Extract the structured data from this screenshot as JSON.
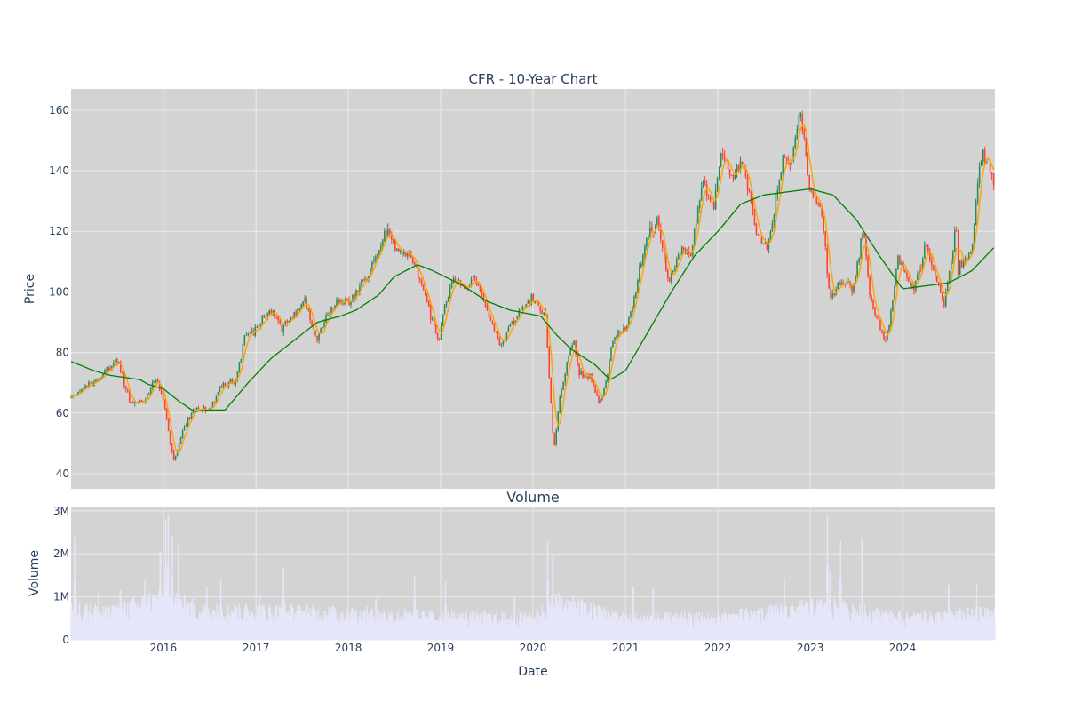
{
  "chart_data": [
    {
      "type": "candlestick",
      "title": "CFR - 10-Year Chart",
      "xlabel": "",
      "ylabel": "Price",
      "ylim": [
        35,
        167
      ],
      "yticks": [
        40,
        60,
        80,
        100,
        120,
        140,
        160
      ],
      "grid": true,
      "background": "#d3d3d3",
      "colors": {
        "increasing": "#2e8b57",
        "decreasing": "#ff4136",
        "ma_short": "#ffa500",
        "ma_long": "#008000"
      },
      "price_anchors": [
        [
          "2015-01-01",
          65
        ],
        [
          "2015-02-01",
          67
        ],
        [
          "2015-03-15",
          69
        ],
        [
          "2015-05-01",
          72
        ],
        [
          "2015-07-01",
          78
        ],
        [
          "2015-08-25",
          63
        ],
        [
          "2015-10-15",
          64
        ],
        [
          "2015-11-30",
          71
        ],
        [
          "2016-01-01",
          64
        ],
        [
          "2016-02-11",
          44
        ],
        [
          "2016-03-20",
          55
        ],
        [
          "2016-05-01",
          62
        ],
        [
          "2016-07-01",
          61
        ],
        [
          "2016-08-15",
          69
        ],
        [
          "2016-10-15",
          71
        ],
        [
          "2016-11-15",
          85
        ],
        [
          "2016-12-31",
          88
        ],
        [
          "2017-03-01",
          94
        ],
        [
          "2017-04-15",
          88
        ],
        [
          "2017-06-01",
          93
        ],
        [
          "2017-07-15",
          97
        ],
        [
          "2017-08-31",
          84
        ],
        [
          "2017-10-15",
          94
        ],
        [
          "2017-11-30",
          97
        ],
        [
          "2018-01-01",
          96
        ],
        [
          "2018-02-10",
          101
        ],
        [
          "2018-04-01",
          108
        ],
        [
          "2018-06-08",
          121
        ],
        [
          "2018-07-01",
          114
        ],
        [
          "2018-08-15",
          113
        ],
        [
          "2018-10-01",
          107
        ],
        [
          "2018-11-01",
          98
        ],
        [
          "2018-12-24",
          83
        ],
        [
          "2019-01-15",
          96
        ],
        [
          "2019-03-01",
          104
        ],
        [
          "2019-04-15",
          101
        ],
        [
          "2019-05-15",
          104
        ],
        [
          "2019-07-01",
          95
        ],
        [
          "2019-08-25",
          82
        ],
        [
          "2019-10-01",
          88
        ],
        [
          "2019-11-15",
          95
        ],
        [
          "2019-12-31",
          98
        ],
        [
          "2020-02-20",
          92
        ],
        [
          "2020-03-23",
          47
        ],
        [
          "2020-04-15",
          65
        ],
        [
          "2020-06-08",
          85
        ],
        [
          "2020-07-01",
          73
        ],
        [
          "2020-08-15",
          72
        ],
        [
          "2020-09-20",
          63
        ],
        [
          "2020-10-15",
          70
        ],
        [
          "2020-11-15",
          85
        ],
        [
          "2020-12-31",
          88
        ],
        [
          "2021-02-01",
          97
        ],
        [
          "2021-03-15",
          115
        ],
        [
          "2021-05-07",
          124
        ],
        [
          "2021-06-20",
          103
        ],
        [
          "2021-08-01",
          114
        ],
        [
          "2021-09-15",
          112
        ],
        [
          "2021-11-01",
          138
        ],
        [
          "2021-12-15",
          127
        ],
        [
          "2022-01-13",
          147
        ],
        [
          "2022-03-01",
          138
        ],
        [
          "2022-04-10",
          143
        ],
        [
          "2022-06-01",
          120
        ],
        [
          "2022-07-15",
          114
        ],
        [
          "2022-09-15",
          145
        ],
        [
          "2022-10-15",
          141
        ],
        [
          "2022-11-25",
          160
        ],
        [
          "2022-12-31",
          133
        ],
        [
          "2023-02-15",
          128
        ],
        [
          "2023-03-20",
          97
        ],
        [
          "2023-05-04",
          104
        ],
        [
          "2023-06-15",
          101
        ],
        [
          "2023-07-31",
          120
        ],
        [
          "2023-08-25",
          98
        ],
        [
          "2023-10-27",
          83
        ],
        [
          "2023-12-15",
          111
        ],
        [
          "2024-02-15",
          101
        ],
        [
          "2024-04-01",
          115
        ],
        [
          "2024-06-15",
          96
        ],
        [
          "2024-07-31",
          123
        ],
        [
          "2024-08-07",
          107
        ],
        [
          "2024-09-30",
          114
        ],
        [
          "2024-11-10",
          147
        ],
        [
          "2024-12-31",
          136
        ]
      ],
      "ma_long_anchors": [
        [
          "2015-01-01",
          77
        ],
        [
          "2015-04-01",
          74
        ],
        [
          "2015-06-01",
          72.5
        ],
        [
          "2015-10-01",
          71
        ],
        [
          "2015-11-01",
          69.5
        ],
        [
          "2016-01-01",
          68
        ],
        [
          "2016-03-01",
          64
        ],
        [
          "2016-05-01",
          60.5
        ],
        [
          "2016-07-01",
          61
        ],
        [
          "2016-09-01",
          61
        ],
        [
          "2016-10-01",
          64
        ],
        [
          "2016-12-01",
          70
        ],
        [
          "2017-03-01",
          78
        ],
        [
          "2017-07-01",
          86
        ],
        [
          "2017-09-01",
          90
        ],
        [
          "2017-12-01",
          92
        ],
        [
          "2018-02-01",
          94
        ],
        [
          "2018-05-01",
          99
        ],
        [
          "2018-07-01",
          105
        ],
        [
          "2018-10-01",
          109
        ],
        [
          "2018-12-01",
          107
        ],
        [
          "2019-04-01",
          102
        ],
        [
          "2019-07-01",
          97
        ],
        [
          "2019-10-01",
          94
        ],
        [
          "2020-02-01",
          92
        ],
        [
          "2020-04-01",
          86
        ],
        [
          "2020-06-01",
          81
        ],
        [
          "2020-09-01",
          76
        ],
        [
          "2020-11-01",
          71
        ],
        [
          "2021-01-01",
          74
        ],
        [
          "2021-04-01",
          87
        ],
        [
          "2021-07-01",
          100
        ],
        [
          "2021-10-01",
          112
        ],
        [
          "2022-01-01",
          120
        ],
        [
          "2022-04-01",
          129
        ],
        [
          "2022-07-01",
          132
        ],
        [
          "2022-10-01",
          133
        ],
        [
          "2023-01-01",
          134
        ],
        [
          "2023-04-01",
          132
        ],
        [
          "2023-07-01",
          124
        ],
        [
          "2023-10-01",
          112
        ],
        [
          "2024-01-01",
          101
        ],
        [
          "2024-04-01",
          102
        ],
        [
          "2024-07-01",
          103
        ],
        [
          "2024-10-01",
          107
        ],
        [
          "2024-12-31",
          115
        ]
      ]
    },
    {
      "type": "bar",
      "title": "Volume",
      "xlabel": "Date",
      "ylabel": "Volume",
      "ylim": [
        0,
        3100000
      ],
      "yticks": [
        0,
        1000000,
        2000000,
        3000000
      ],
      "ytick_labels": [
        "0",
        "1M",
        "2M",
        "3M"
      ],
      "xticks": [
        "2016",
        "2017",
        "2018",
        "2019",
        "2020",
        "2021",
        "2022",
        "2023",
        "2024"
      ],
      "x_range": [
        "2015-01-01",
        "2024-12-31"
      ],
      "bar_color": "#e6e6fa",
      "baseline_anchors": [
        [
          "2015-01-01",
          700000
        ],
        [
          "2015-06-01",
          550000
        ],
        [
          "2016-01-01",
          900000
        ],
        [
          "2016-06-01",
          600000
        ],
        [
          "2017-01-01",
          600000
        ],
        [
          "2018-01-01",
          550000
        ],
        [
          "2019-01-01",
          480000
        ],
        [
          "2020-01-01",
          450000
        ],
        [
          "2020-04-01",
          800000
        ],
        [
          "2021-01-01",
          450000
        ],
        [
          "2022-01-01",
          450000
        ],
        [
          "2023-03-01",
          700000
        ],
        [
          "2024-01-01",
          450000
        ],
        [
          "2024-12-31",
          550000
        ]
      ],
      "spikes": [
        [
          "2015-01-15",
          2400000
        ],
        [
          "2015-04-20",
          1400000
        ],
        [
          "2015-07-15",
          1450000
        ],
        [
          "2015-10-20",
          1400000
        ],
        [
          "2015-12-20",
          2550000
        ],
        [
          "2016-01-10",
          2800000
        ],
        [
          "2016-01-20",
          2900000
        ],
        [
          "2016-02-05",
          2400000
        ],
        [
          "2016-03-01",
          2750000
        ],
        [
          "2016-06-20",
          1250000
        ],
        [
          "2016-08-15",
          1400000
        ],
        [
          "2017-01-15",
          1300000
        ],
        [
          "2017-04-20",
          1700000
        ],
        [
          "2018-04-20",
          1200000
        ],
        [
          "2018-09-20",
          1500000
        ],
        [
          "2019-01-20",
          1350000
        ],
        [
          "2019-10-20",
          1250000
        ],
        [
          "2020-02-28",
          2300000
        ],
        [
          "2020-03-20",
          2450000
        ],
        [
          "2021-02-01",
          1550000
        ],
        [
          "2021-04-20",
          1500000
        ],
        [
          "2022-09-20",
          1800000
        ],
        [
          "2023-03-10",
          2900000
        ],
        [
          "2023-03-20",
          1600000
        ],
        [
          "2023-05-01",
          2300000
        ],
        [
          "2023-07-25",
          2950000
        ],
        [
          "2024-07-01",
          1600000
        ],
        [
          "2024-10-20",
          1300000
        ]
      ]
    }
  ]
}
